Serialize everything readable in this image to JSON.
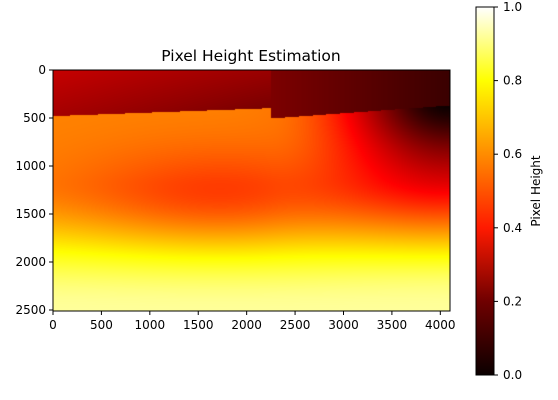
{
  "chart_data": {
    "type": "heatmap",
    "title": "Pixel Height Estimation",
    "colormap": "hot",
    "x_range": [
      0,
      4100
    ],
    "y_range": [
      0,
      2500
    ],
    "y_inverted": true,
    "x_ticks": [
      "0",
      "500",
      "1000",
      "1500",
      "2000",
      "2500",
      "3000",
      "3500",
      "4000"
    ],
    "y_ticks": [
      "0",
      "500",
      "1000",
      "1500",
      "2000",
      "2500"
    ],
    "colorbar": {
      "label": "Pixel Height",
      "range": [
        0.0,
        1.0
      ],
      "ticks": [
        "0.0",
        "0.2",
        "0.4",
        "0.6",
        "0.8",
        "1.0"
      ]
    }
  }
}
